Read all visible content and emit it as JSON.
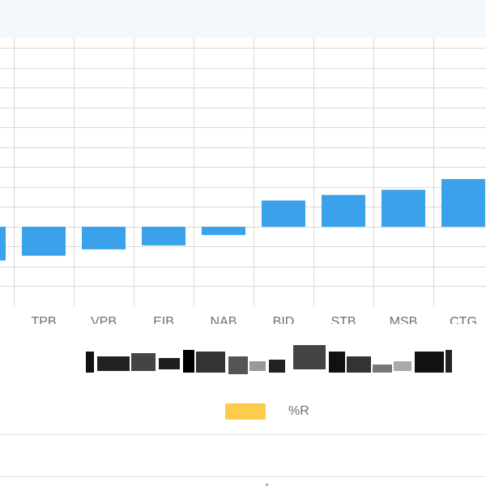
{
  "colors": {
    "bar": "#3aa1ea",
    "legend_swatch": "#fdcc4a",
    "grid": "#d9d9d9",
    "header_bg": "#f3f8fd"
  },
  "chart_data": {
    "type": "bar",
    "categories": [
      "TPB",
      "VPB",
      "EIB",
      "NAB",
      "BID",
      "STB",
      "MSB",
      "CTG"
    ],
    "values": [
      -0.73,
      -0.57,
      -0.47,
      -0.21,
      0.66,
      0.8,
      0.93,
      1.2
    ],
    "partial_left_value": -0.85,
    "ylim": [
      -2.0,
      4.75
    ],
    "grid": true
  },
  "legend": {
    "label": "%R"
  }
}
